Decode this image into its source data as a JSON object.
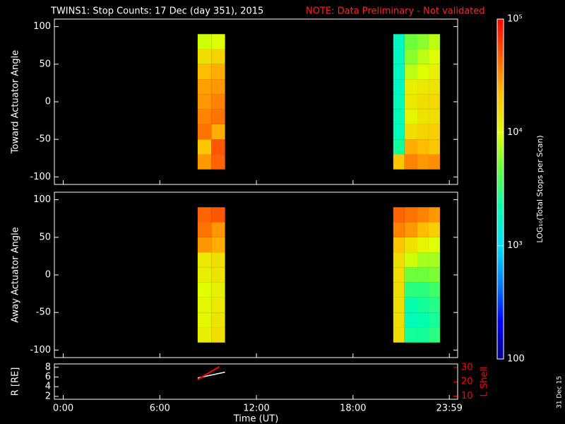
{
  "title": "TWINS1: Stop Counts: 17 Dec (day 351), 2015",
  "note": "NOTE: Data Preliminary - Not validated",
  "date_stamp": "31 Dec 15",
  "colorbar": {
    "label": "LOG₁₀(Total Stops per Scan)",
    "zlim": [
      100,
      100000
    ],
    "log": true,
    "zticks": [
      100,
      {
        "value": 1000,
        "label": "10³"
      },
      {
        "value": 10000,
        "label": "10⁴"
      },
      {
        "value": 100000,
        "label": "10⁵"
      }
    ],
    "colormap": [
      "#00008c",
      "#0000ff",
      "#0080ff",
      "#00e0ff",
      "#00ffb0",
      "#60ff40",
      "#e0ff00",
      "#ffc000",
      "#ff6000",
      "#ff0000"
    ]
  },
  "chart_data": [
    {
      "type": "heatmap",
      "ylabel": "Toward Actuator Angle",
      "xlim": [
        -0.55,
        24.5
      ],
      "ylim": [
        -110,
        110
      ],
      "yticks": [
        -100,
        -50,
        0,
        50,
        100
      ],
      "y_edges": [
        -90,
        -70,
        -50,
        -30,
        -10,
        10,
        30,
        50,
        70,
        90
      ],
      "blocks": [
        {
          "x_edges": [
            8.35,
            9.2,
            10.05
          ],
          "z": [
            [
              30000,
              45000
            ],
            [
              20000,
              50000
            ],
            [
              40000,
              25000
            ],
            [
              35000,
              40000
            ],
            [
              30000,
              35000
            ],
            [
              28000,
              30000
            ],
            [
              22000,
              25000
            ],
            [
              15000,
              17000
            ],
            [
              9000,
              10000
            ]
          ]
        },
        {
          "x_edges": [
            20.5,
            21.2,
            22.0,
            22.7,
            23.4
          ],
          "z": [
            [
              20000,
              35000,
              30000,
              32000
            ],
            [
              2500,
              25000,
              22000,
              20000
            ],
            [
              2000,
              15000,
              17000,
              18000
            ],
            [
              2000,
              11000,
              14000,
              15000
            ],
            [
              2000,
              13000,
              15000,
              16000
            ],
            [
              1800,
              12000,
              13000,
              14000
            ],
            [
              1800,
              8000,
              10000,
              12000
            ],
            [
              1800,
              6000,
              8000,
              10000
            ],
            [
              1800,
              5000,
              6000,
              8000
            ]
          ]
        }
      ]
    },
    {
      "type": "heatmap",
      "ylabel": "Away Actuator Angle",
      "xlim": [
        -0.55,
        24.5
      ],
      "ylim": [
        -110,
        110
      ],
      "yticks": [
        -100,
        -50,
        0,
        50,
        100
      ],
      "y_edges": [
        -90,
        -70,
        -50,
        -30,
        -10,
        10,
        30,
        50,
        70,
        90
      ],
      "blocks": [
        {
          "x_edges": [
            8.35,
            9.2,
            10.05
          ],
          "z": [
            [
              12000,
              15000
            ],
            [
              11000,
              14000
            ],
            [
              11000,
              13000
            ],
            [
              10000,
              12000
            ],
            [
              12000,
              14000
            ],
            [
              13000,
              15000
            ],
            [
              30000,
              25000
            ],
            [
              40000,
              30000
            ],
            [
              45000,
              50000
            ]
          ]
        },
        {
          "x_edges": [
            20.5,
            21.2,
            22.0,
            22.7,
            23.4
          ],
          "z": [
            [
              15000,
              2500,
              2500,
              3000
            ],
            [
              15000,
              2000,
              2200,
              2500
            ],
            [
              15000,
              2200,
              2500,
              2800
            ],
            [
              15000,
              3000,
              3000,
              3500
            ],
            [
              15000,
              5000,
              5000,
              5500
            ],
            [
              15000,
              9000,
              7000,
              7000
            ],
            [
              20000,
              14000,
              11000,
              10000
            ],
            [
              35000,
              30000,
              22000,
              18000
            ],
            [
              45000,
              40000,
              35000,
              30000
            ]
          ]
        }
      ]
    },
    {
      "type": "line",
      "ylabel": "R [RE]",
      "y2label": "L Shell",
      "xlabel": "Time (UT)",
      "xlim": [
        -0.55,
        24.5
      ],
      "xticks": [
        {
          "value": 0,
          "label": "0:00"
        },
        {
          "value": 6,
          "label": "6:00"
        },
        {
          "value": 12,
          "label": "12:00"
        },
        {
          "value": 18,
          "label": "18:00"
        },
        {
          "value": 23.983,
          "label": "23:59"
        }
      ],
      "ylim": [
        1.4,
        8.7
      ],
      "yticks": [
        2,
        4,
        6,
        8
      ],
      "y2lim": [
        7.8,
        32.4
      ],
      "y2ticks": [
        10,
        20,
        30
      ],
      "y2color": "#ff0000",
      "series": [
        {
          "color": "#ffffff",
          "x": [
            8.35,
            10.05
          ],
          "values": [
            5.8,
            7.0
          ]
        },
        {
          "color": "#ff0000",
          "axis": "y2",
          "x": [
            8.35,
            9.7
          ],
          "values": [
            21.5,
            30.5
          ]
        }
      ]
    }
  ]
}
